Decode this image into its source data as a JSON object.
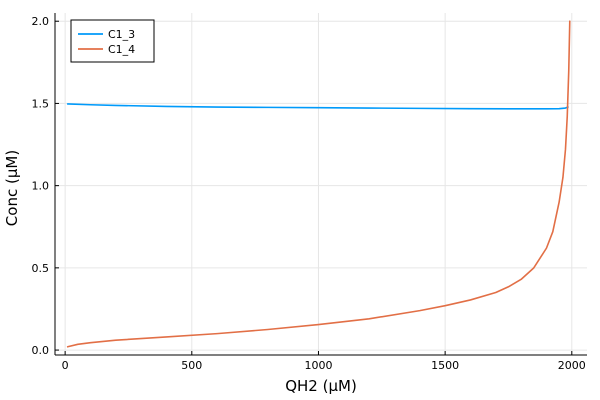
{
  "chart_data": {
    "type": "line",
    "title": "",
    "xlabel": "QH2 (μM)",
    "ylabel": "Conc (μM)",
    "xlim": [
      -40,
      2060
    ],
    "ylim": [
      -0.03,
      2.05
    ],
    "xticks": [
      0,
      500,
      1000,
      1500,
      2000
    ],
    "xtick_labels": [
      "0",
      "500",
      "1000",
      "1500",
      "2000"
    ],
    "yticks": [
      0.0,
      0.5,
      1.0,
      1.5,
      2.0
    ],
    "ytick_labels": [
      "0.0",
      "0.5",
      "1.0",
      "1.5",
      "2.0"
    ],
    "grid": true,
    "legend": "top-left",
    "series": [
      {
        "name": "C1_3",
        "color": "#009AFA",
        "x": [
          10,
          100,
          200,
          400,
          600,
          800,
          1000,
          1200,
          1400,
          1600,
          1800,
          1900,
          1950,
          1975,
          1985
        ],
        "y": [
          1.497,
          1.492,
          1.488,
          1.482,
          1.478,
          1.476,
          1.474,
          1.472,
          1.47,
          1.468,
          1.467,
          1.467,
          1.468,
          1.472,
          1.478
        ]
      },
      {
        "name": "C1_4",
        "color": "#E26F46",
        "x": [
          10,
          50,
          100,
          200,
          400,
          600,
          800,
          1000,
          1200,
          1400,
          1500,
          1600,
          1700,
          1750,
          1800,
          1850,
          1900,
          1925,
          1950,
          1965,
          1975,
          1982,
          1988,
          1992
        ],
        "y": [
          0.02,
          0.035,
          0.045,
          0.06,
          0.08,
          0.1,
          0.125,
          0.155,
          0.19,
          0.24,
          0.27,
          0.305,
          0.35,
          0.385,
          0.43,
          0.5,
          0.62,
          0.72,
          0.9,
          1.05,
          1.22,
          1.42,
          1.7,
          2.0
        ]
      }
    ]
  }
}
